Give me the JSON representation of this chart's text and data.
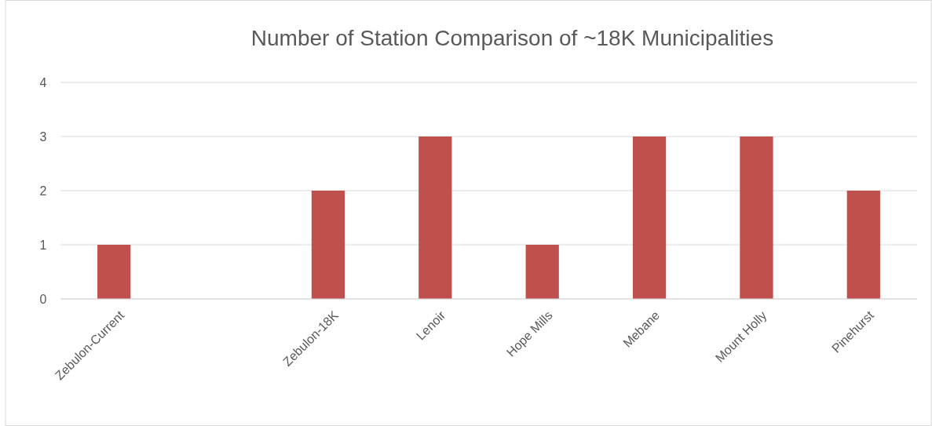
{
  "chart_data": {
    "type": "bar",
    "title": "Number of Station Comparison of ~18K Municipalities",
    "categories": [
      "Zebulon-Current",
      null,
      "Zebulon-18K",
      "Lenoir",
      "Hope Mills",
      "Mebane",
      "Mount Holly",
      "Pinehurst"
    ],
    "values": [
      1,
      null,
      2,
      3,
      1,
      3,
      3,
      2
    ],
    "color": "#c0504d",
    "ylim": [
      0,
      4
    ],
    "yticks": [
      0,
      1,
      2,
      3,
      4
    ],
    "grid": "y"
  }
}
